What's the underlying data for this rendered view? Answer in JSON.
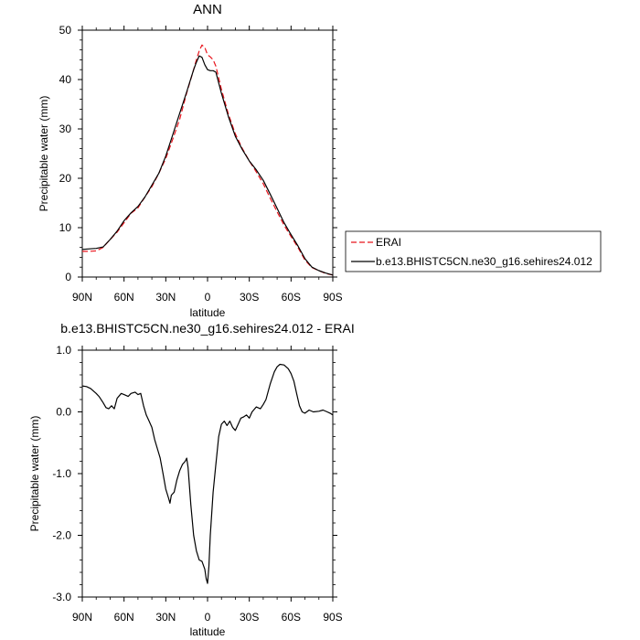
{
  "chart_data": [
    {
      "type": "line",
      "title": "ANN",
      "xlabel": "latitude",
      "ylabel": "Precipitable water (mm)",
      "xlim": [
        90,
        -90
      ],
      "ylim": [
        0,
        50
      ],
      "x_ticks": [
        90,
        60,
        30,
        0,
        -30,
        -60,
        -90
      ],
      "x_tick_labels": [
        "90N",
        "60N",
        "30N",
        "0",
        "30S",
        "60S",
        "90S"
      ],
      "y_ticks": [
        0,
        10,
        20,
        30,
        40,
        50
      ],
      "y_tick_labels": [
        "0",
        "10",
        "20",
        "30",
        "40",
        "50"
      ],
      "legend_position": "outside-right",
      "series": [
        {
          "name": "ERAI",
          "color": "#e8141c",
          "style": "dashed",
          "x": [
            90,
            85,
            80,
            75,
            70,
            65,
            60,
            55,
            50,
            45,
            40,
            35,
            30,
            25,
            20,
            15,
            10,
            8,
            6,
            4,
            2,
            0,
            -2,
            -4,
            -6,
            -10,
            -15,
            -20,
            -25,
            -30,
            -35,
            -40,
            -45,
            -50,
            -55,
            -60,
            -65,
            -70,
            -75,
            -80,
            -85,
            -90
          ],
          "y": [
            5.2,
            5.2,
            5.3,
            6.0,
            7.6,
            9.1,
            11.0,
            12.9,
            14.0,
            16.2,
            18.3,
            21.0,
            24.0,
            27.9,
            32.0,
            37.3,
            42.0,
            44.0,
            45.8,
            47.0,
            46.5,
            45.0,
            44.6,
            44.0,
            42.7,
            38.0,
            33.0,
            29.0,
            26.0,
            23.5,
            21.3,
            18.9,
            16.0,
            13.2,
            10.5,
            8.2,
            6.0,
            3.4,
            1.9,
            1.3,
            0.7,
            0.4
          ]
        },
        {
          "name": "b.e13.BHISTC5CN.ne30_g16.sehires24.012",
          "color": "#000000",
          "style": "solid",
          "x": [
            90,
            85,
            80,
            75,
            70,
            65,
            60,
            55,
            50,
            45,
            40,
            35,
            30,
            25,
            20,
            15,
            10,
            8,
            6,
            4,
            2,
            0,
            -2,
            -4,
            -6,
            -10,
            -15,
            -20,
            -25,
            -30,
            -35,
            -40,
            -45,
            -50,
            -55,
            -60,
            -65,
            -70,
            -75,
            -80,
            -85,
            -90
          ],
          "y": [
            5.6,
            5.7,
            5.8,
            6.1,
            7.6,
            9.3,
            11.4,
            13.0,
            14.3,
            16.2,
            18.6,
            21.0,
            24.5,
            28.8,
            33.2,
            37.5,
            42.0,
            43.5,
            44.8,
            44.5,
            43.0,
            42.0,
            41.8,
            41.8,
            41.5,
            37.2,
            32.5,
            28.5,
            25.8,
            23.5,
            21.7,
            19.6,
            16.8,
            13.9,
            11.0,
            8.6,
            6.3,
            3.7,
            2.0,
            1.3,
            0.8,
            0.4
          ]
        }
      ]
    },
    {
      "type": "line",
      "title": "b.e13.BHISTC5CN.ne30_g16.sehires24.012 - ERAI",
      "xlabel": "latitude",
      "ylabel": "Precipitable water (mm)",
      "xlim": [
        90,
        -90
      ],
      "ylim": [
        -3.0,
        1.0
      ],
      "x_ticks": [
        90,
        60,
        30,
        0,
        -30,
        -60,
        -90
      ],
      "x_tick_labels": [
        "90N",
        "60N",
        "30N",
        "0",
        "30S",
        "60S",
        "90S"
      ],
      "y_ticks": [
        -3,
        -2,
        -1,
        0,
        1
      ],
      "y_tick_labels": [
        "-3.0",
        "-2.0",
        "-1.0",
        "0.0",
        "1.0"
      ],
      "series": [
        {
          "color": "#000000",
          "style": "solid",
          "x": [
            90,
            87,
            84,
            80,
            78,
            75,
            73,
            71,
            69,
            67,
            65,
            62,
            60,
            57,
            55,
            52,
            50,
            48,
            46,
            44,
            42,
            40,
            38,
            36,
            34,
            32,
            30,
            28,
            27,
            26,
            24,
            22,
            20,
            18,
            16,
            15,
            14,
            12,
            10,
            8,
            6,
            4,
            2,
            1,
            0,
            -1,
            -2,
            -4,
            -6,
            -8,
            -10,
            -12,
            -14,
            -16,
            -18,
            -20,
            -22,
            -24,
            -26,
            -28,
            -30,
            -32,
            -35,
            -38,
            -40,
            -42,
            -45,
            -48,
            -50,
            -52,
            -55,
            -58,
            -60,
            -62,
            -64,
            -66,
            -68,
            -70,
            -73,
            -76,
            -80,
            -83,
            -86,
            -88,
            -90
          ],
          "y": [
            0.42,
            0.41,
            0.38,
            0.3,
            0.25,
            0.15,
            0.07,
            0.05,
            0.1,
            0.05,
            0.22,
            0.3,
            0.28,
            0.25,
            0.3,
            0.32,
            0.28,
            0.3,
            0.1,
            -0.05,
            -0.15,
            -0.25,
            -0.45,
            -0.6,
            -0.75,
            -1.0,
            -1.25,
            -1.4,
            -1.48,
            -1.35,
            -1.3,
            -1.1,
            -0.95,
            -0.85,
            -0.8,
            -0.75,
            -0.9,
            -1.5,
            -2.0,
            -2.25,
            -2.4,
            -2.42,
            -2.55,
            -2.7,
            -2.78,
            -2.5,
            -2.0,
            -1.3,
            -0.85,
            -0.4,
            -0.2,
            -0.15,
            -0.22,
            -0.15,
            -0.25,
            -0.3,
            -0.2,
            -0.1,
            -0.08,
            -0.05,
            -0.1,
            0.0,
            0.08,
            0.05,
            0.12,
            0.2,
            0.45,
            0.65,
            0.73,
            0.77,
            0.76,
            0.7,
            0.62,
            0.5,
            0.3,
            0.1,
            0.0,
            -0.02,
            0.03,
            0.0,
            0.01,
            0.03,
            0.0,
            -0.02,
            -0.05
          ]
        }
      ]
    }
  ]
}
